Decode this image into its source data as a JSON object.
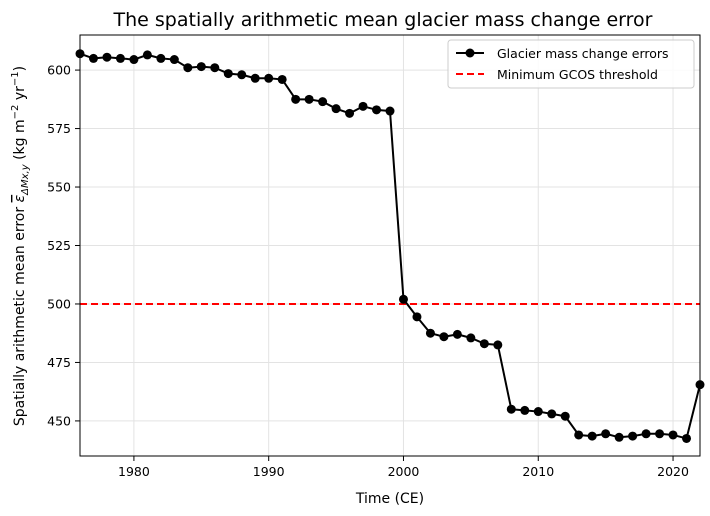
{
  "chart_data": {
    "type": "line",
    "title": "The spatially arithmetic mean glacier mass change error",
    "xlabel": "Time (CE)",
    "ylabel_main": "Spatially arithmetic mean error ",
    "ylabel_symbol": "ε",
    "ylabel_subscript": "ΔMx,y",
    "ylabel_units_open": " (kg m",
    "ylabel_units_exp1": "−2",
    "ylabel_units_mid": " yr",
    "ylabel_units_exp2": "−1",
    "ylabel_units_close": ")",
    "xlim": [
      1976,
      2022
    ],
    "ylim": [
      435,
      615
    ],
    "x_ticks": [
      1980,
      1990,
      2000,
      2010,
      2020
    ],
    "y_ticks": [
      450,
      475,
      500,
      525,
      550,
      575,
      600
    ],
    "grid": true,
    "legend_position": "top-right",
    "series": [
      {
        "name": "Glacier mass change errors",
        "color": "#000000",
        "marker": "circle",
        "x": [
          1976,
          1977,
          1978,
          1979,
          1980,
          1981,
          1982,
          1983,
          1984,
          1985,
          1986,
          1987,
          1988,
          1989,
          1990,
          1991,
          1992,
          1993,
          1994,
          1995,
          1996,
          1997,
          1998,
          1999,
          2000,
          2001,
          2002,
          2003,
          2004,
          2005,
          2006,
          2007,
          2008,
          2009,
          2010,
          2011,
          2012,
          2013,
          2014,
          2015,
          2016,
          2017,
          2018,
          2019,
          2020,
          2021,
          2022
        ],
        "y": [
          607,
          605,
          605.5,
          605,
          604.5,
          606.5,
          605,
          604.5,
          601,
          601.5,
          601,
          598.5,
          598,
          596.5,
          596.5,
          596,
          587.5,
          587.5,
          586.5,
          583.5,
          581.5,
          584.5,
          583,
          582.5,
          502,
          494.5,
          487.5,
          486,
          487,
          485.5,
          483,
          482.5,
          455,
          454.5,
          454,
          453,
          452,
          444,
          443.5,
          444.5,
          443,
          443.5,
          444.5,
          444.5,
          444,
          442.5,
          465.5
        ]
      }
    ],
    "threshold": {
      "name": "Minimum GCOS threshold",
      "value": 500,
      "color": "#ff0000",
      "style": "dashed"
    }
  }
}
